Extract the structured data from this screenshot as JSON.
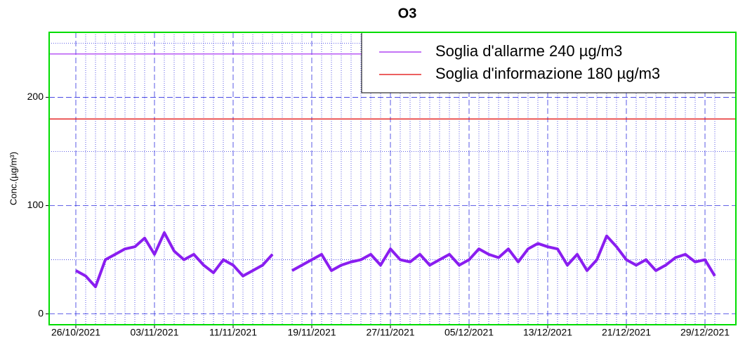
{
  "chart_data": {
    "type": "line",
    "title": "O3",
    "ylabel": "Conc.(µg/m³)",
    "x": [
      "26/10/2021",
      "27/10/2021",
      "28/10/2021",
      "29/10/2021",
      "30/10/2021",
      "31/10/2021",
      "01/11/2021",
      "02/11/2021",
      "03/11/2021",
      "04/11/2021",
      "05/11/2021",
      "06/11/2021",
      "07/11/2021",
      "08/11/2021",
      "09/11/2021",
      "10/11/2021",
      "11/11/2021",
      "12/11/2021",
      "13/11/2021",
      "14/11/2021",
      "15/11/2021",
      "16/11/2021",
      "17/11/2021",
      "18/11/2021",
      "19/11/2021",
      "20/11/2021",
      "21/11/2021",
      "22/11/2021",
      "23/11/2021",
      "24/11/2021",
      "25/11/2021",
      "26/11/2021",
      "27/11/2021",
      "28/11/2021",
      "29/11/2021",
      "30/11/2021",
      "01/12/2021",
      "02/12/2021",
      "03/12/2021",
      "04/12/2021",
      "05/12/2021",
      "06/12/2021",
      "07/12/2021",
      "08/12/2021",
      "09/12/2021",
      "10/12/2021",
      "11/12/2021",
      "12/12/2021",
      "13/12/2021",
      "14/12/2021",
      "15/12/2021",
      "16/12/2021",
      "17/12/2021",
      "18/12/2021",
      "19/12/2021",
      "20/12/2021",
      "21/12/2021",
      "22/12/2021",
      "23/12/2021",
      "24/12/2021",
      "25/12/2021",
      "26/12/2021",
      "27/12/2021",
      "28/12/2021",
      "29/12/2021",
      "30/12/2021"
    ],
    "values": [
      40,
      35,
      25,
      50,
      55,
      60,
      62,
      70,
      55,
      75,
      58,
      50,
      55,
      45,
      38,
      50,
      45,
      35,
      40,
      45,
      55,
      null,
      40,
      45,
      50,
      55,
      40,
      45,
      48,
      50,
      55,
      45,
      60,
      50,
      48,
      55,
      45,
      50,
      55,
      45,
      50,
      60,
      55,
      52,
      60,
      48,
      60,
      65,
      62,
      60,
      45,
      55,
      40,
      50,
      72,
      62,
      50,
      45,
      50,
      40,
      45,
      52,
      55,
      48,
      50,
      35
    ],
    "color": "#8a1ef0",
    "xticks": [
      "26/10/2021",
      "03/11/2021",
      "11/11/2021",
      "19/11/2021",
      "27/11/2021",
      "05/12/2021",
      "13/12/2021",
      "21/12/2021",
      "29/12/2021"
    ],
    "ylim": [
      -10,
      260
    ],
    "yticks": [
      0,
      100,
      200
    ],
    "yminor": [
      50,
      150,
      250
    ],
    "grid": true,
    "hlines": [
      {
        "name": "Soglia d'allarme 240 µg/m3",
        "value": 240,
        "color": "#a020f0"
      },
      {
        "name": "Soglia d'informazione 180 µg/m3",
        "value": 180,
        "color": "#e00000"
      }
    ],
    "legend": "top-right"
  }
}
